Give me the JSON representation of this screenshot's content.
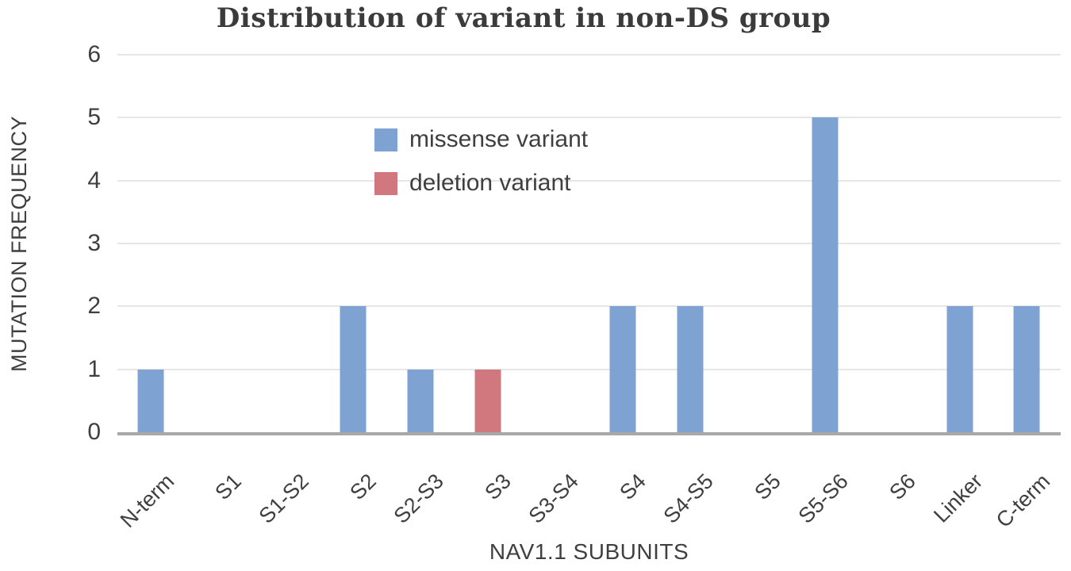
{
  "chart_data": {
    "type": "bar",
    "title": "Distribution of variant in non-DS group",
    "xlabel": "NAV1.1 SUBUNITS",
    "ylabel": "MUTATION FREQUENCY",
    "ylim": [
      0,
      6
    ],
    "yticks": [
      0,
      1,
      2,
      3,
      4,
      5,
      6
    ],
    "grid": true,
    "legend_position": "inside-upper-left",
    "categories": [
      "N-term",
      "S1",
      "S1-S2",
      "S2",
      "S2-S3",
      "S3",
      "S3-S4",
      "S4",
      "S4-S5",
      "S5",
      "S5-S6",
      "S6",
      "Linker",
      "C-term"
    ],
    "series": [
      {
        "name": "missense variant",
        "color": "#7EA3D3",
        "values": [
          1,
          0,
          0,
          2,
          1,
          0,
          0,
          2,
          2,
          0,
          5,
          0,
          2,
          2
        ]
      },
      {
        "name": "deletion variant",
        "color": "#D0787D",
        "values": [
          0,
          0,
          0,
          0,
          0,
          1,
          0,
          0,
          0,
          0,
          0,
          0,
          0,
          0
        ]
      }
    ],
    "colors": {
      "axis_line": "#a8a8a8",
      "gridline": "#e6e6e6",
      "text": "#3f3f3f"
    }
  }
}
